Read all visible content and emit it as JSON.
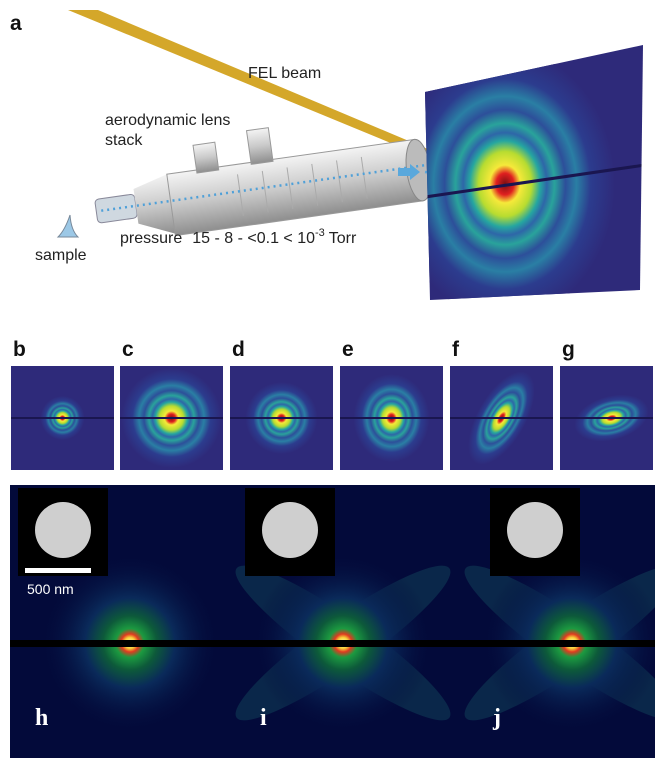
{
  "figure": {
    "panel_a": {
      "label": "a",
      "beam": "FEL beam",
      "lens": [
        "aerodynamic lens",
        "stack"
      ],
      "sample": "sample",
      "pressure": {
        "label": "pressure",
        "values": "15 - 8 - <0.1 < 10",
        "exponent": "-3",
        "unit": "Torr"
      }
    },
    "row_labels": [
      "b",
      "c",
      "d",
      "e",
      "f",
      "g"
    ],
    "bottom_labels": [
      "h",
      "i",
      "j"
    ],
    "scale_bar": "500 nm"
  }
}
